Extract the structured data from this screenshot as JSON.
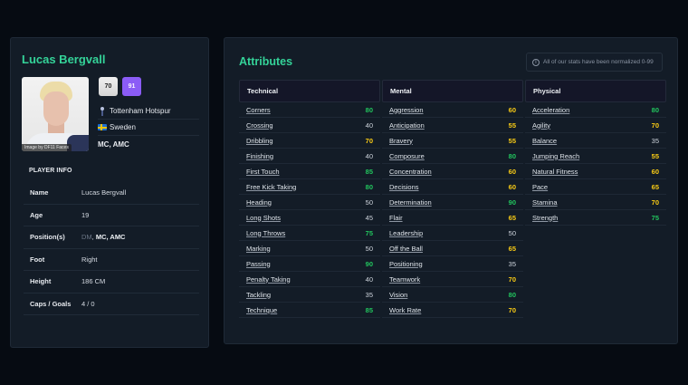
{
  "player": {
    "name": "Lucas Bergvall",
    "photo_credit": "Image by DF11 Faces",
    "current_ability": "70",
    "potential_ability": "91",
    "club": "Tottenham Hotspur",
    "nation": "Sweden",
    "positions_summary": "MC, AMC"
  },
  "player_info": {
    "heading": "PLAYER INFO",
    "rows": [
      {
        "label": "Name",
        "value": "Lucas Bergvall"
      },
      {
        "label": "Age",
        "value": "19"
      },
      {
        "label": "Position(s)",
        "value_dim": "DM",
        "value_sep": ", ",
        "value_strong": "MC, AMC"
      },
      {
        "label": "Foot",
        "value": "Right"
      },
      {
        "label": "Height",
        "value": "186 CM"
      },
      {
        "label": "Caps / Goals",
        "value": "4 / 0"
      }
    ]
  },
  "attributes": {
    "title": "Attributes",
    "note": "All of our stats have been normalized 0-99",
    "colors": {
      "high": "#22c55e",
      "mid": "#facc15",
      "low": "#cfd5dd"
    },
    "groups": [
      {
        "name": "Technical",
        "items": [
          {
            "name": "Corners",
            "value": "80"
          },
          {
            "name": "Crossing",
            "value": "40"
          },
          {
            "name": "Dribbling",
            "value": "70"
          },
          {
            "name": "Finishing",
            "value": "40"
          },
          {
            "name": "First Touch",
            "value": "85"
          },
          {
            "name": "Free Kick Taking",
            "value": "80"
          },
          {
            "name": "Heading",
            "value": "50"
          },
          {
            "name": "Long Shots",
            "value": "45"
          },
          {
            "name": "Long Throws",
            "value": "75"
          },
          {
            "name": "Marking",
            "value": "50"
          },
          {
            "name": "Passing",
            "value": "90"
          },
          {
            "name": "Penalty Taking",
            "value": "40"
          },
          {
            "name": "Tackling",
            "value": "35"
          },
          {
            "name": "Technique",
            "value": "85"
          }
        ]
      },
      {
        "name": "Mental",
        "items": [
          {
            "name": "Aggression",
            "value": "60"
          },
          {
            "name": "Anticipation",
            "value": "55"
          },
          {
            "name": "Bravery",
            "value": "55"
          },
          {
            "name": "Composure",
            "value": "80"
          },
          {
            "name": "Concentration",
            "value": "60"
          },
          {
            "name": "Decisions",
            "value": "60"
          },
          {
            "name": "Determination",
            "value": "90"
          },
          {
            "name": "Flair",
            "value": "65"
          },
          {
            "name": "Leadership",
            "value": "50"
          },
          {
            "name": "Off the Ball",
            "value": "65"
          },
          {
            "name": "Positioning",
            "value": "35"
          },
          {
            "name": "Teamwork",
            "value": "70"
          },
          {
            "name": "Vision",
            "value": "80"
          },
          {
            "name": "Work Rate",
            "value": "70"
          }
        ]
      },
      {
        "name": "Physical",
        "items": [
          {
            "name": "Acceleration",
            "value": "80"
          },
          {
            "name": "Agility",
            "value": "70"
          },
          {
            "name": "Balance",
            "value": "35"
          },
          {
            "name": "Jumping Reach",
            "value": "55"
          },
          {
            "name": "Natural Fitness",
            "value": "60"
          },
          {
            "name": "Pace",
            "value": "65"
          },
          {
            "name": "Stamina",
            "value": "70"
          },
          {
            "name": "Strength",
            "value": "75"
          }
        ]
      }
    ]
  },
  "icons": {
    "club_crest": "spurs-cockerel-icon",
    "nation_flag": "sweden-flag-icon",
    "note": "info-circle-icon"
  }
}
